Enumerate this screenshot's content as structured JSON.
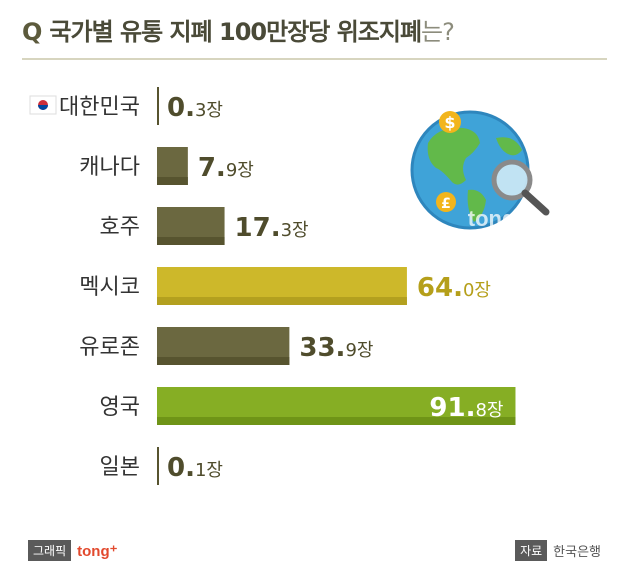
{
  "title": {
    "prefix": "Q",
    "main": "국가별 유통 지폐 100만장당 위조지폐",
    "suffix": "는?"
  },
  "chart_data": {
    "type": "bar",
    "orientation": "horizontal",
    "categories": [
      "대한민국",
      "캐나다",
      "호주",
      "멕시코",
      "유로존",
      "영국",
      "일본"
    ],
    "values": [
      0.3,
      7.9,
      17.3,
      64.0,
      33.9,
      91.8,
      0.1
    ],
    "value_labels": [
      {
        "big": "0.",
        "small": "3장"
      },
      {
        "big": "7.",
        "small": "9장"
      },
      {
        "big": "17.",
        "small": "3장"
      },
      {
        "big": "64.",
        "small": "0장"
      },
      {
        "big": "33.",
        "small": "9장"
      },
      {
        "big": "91.",
        "small": "8장"
      },
      {
        "big": "0.",
        "small": "1장"
      }
    ],
    "unit": "장",
    "highlight": {
      "멕시코": "#cdb82a",
      "영국": "#86ae24"
    },
    "colors": {
      "default_bar": "#6b6840",
      "default_bar_dark": "#57542f",
      "mexico_bar": "#cdb82a",
      "mexico_bar_dark": "#b3a01f",
      "uk_bar": "#86ae24",
      "uk_bar_dark": "#6f9417",
      "default_value": "#4f4c2c",
      "mexico_value": "#b59f1a",
      "uk_label": "#86ae24",
      "uk_value": "#ffffff",
      "label": "#333333"
    }
  },
  "footer": {
    "graphic_badge": "그래픽",
    "brand": "tong⁺",
    "source_badge": "자료",
    "source": "한국은행"
  },
  "globe": {
    "icon": "globe-magnifier-icon",
    "watermark": "tong+"
  }
}
